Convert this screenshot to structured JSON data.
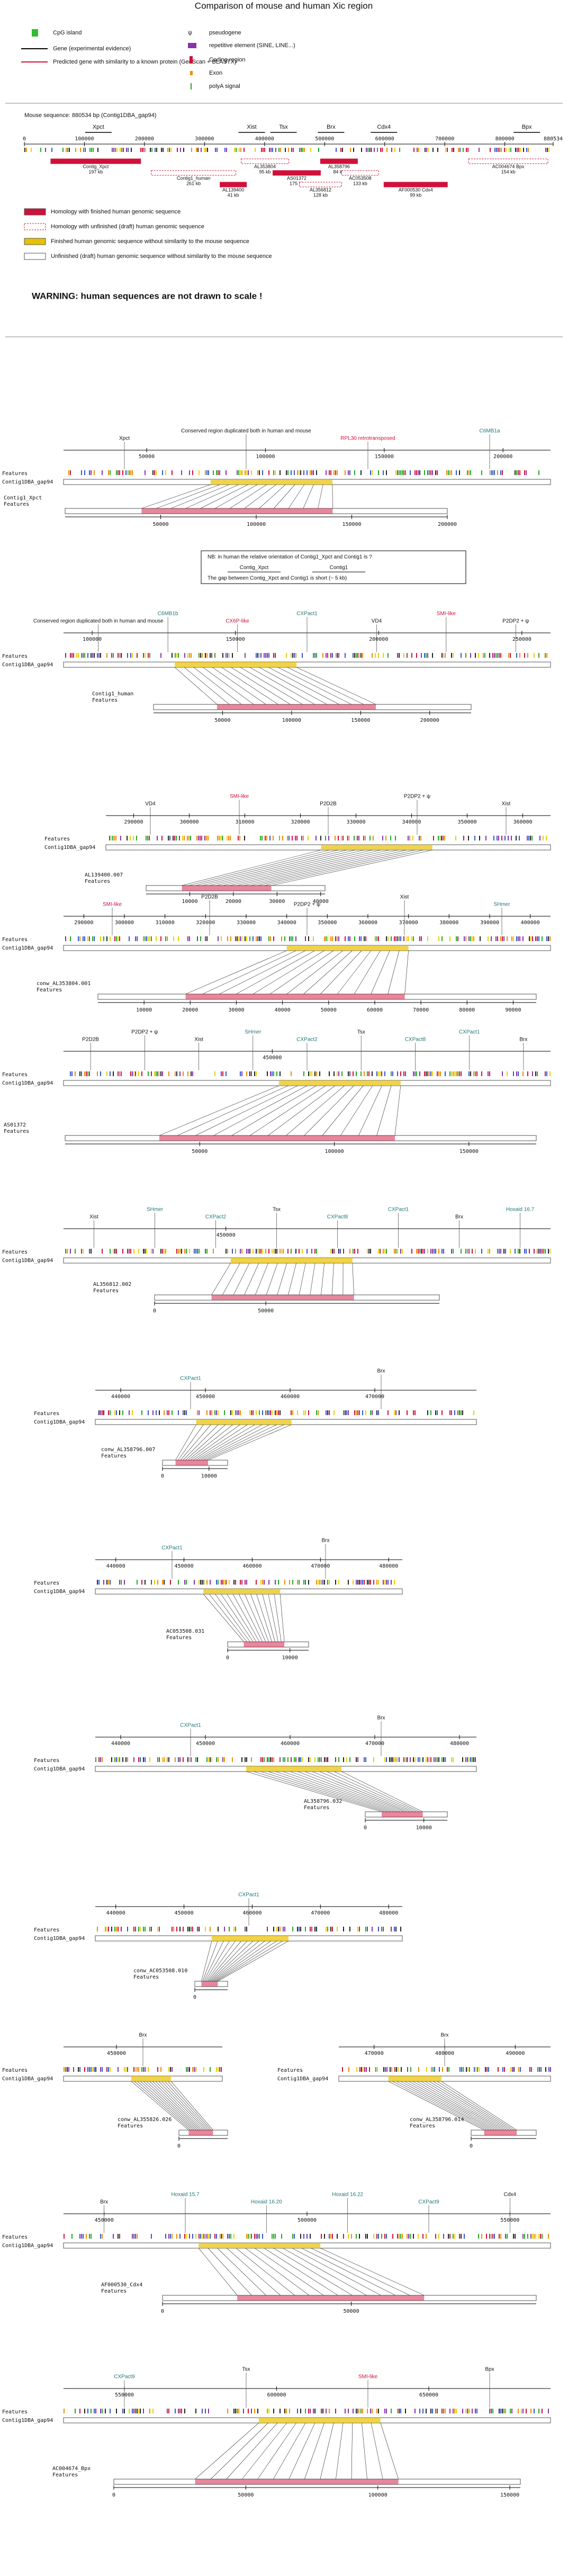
{
  "title": "Comparison of mouse and human Xic region",
  "legend": {
    "items": [
      "CpG island",
      "Gene (experimental evidence)",
      "Predicted gene with similarity to a known protein (GenScan + BLASTX)",
      "pseudogene",
      "repetitive element (SINE, LINE...)",
      "Coding region",
      "Exon",
      "polyA signal"
    ]
  },
  "mouse": {
    "title": "Mouse sequence: 880534 bp (Contig1DBA_gap94)",
    "xlim": [
      0,
      880534
    ],
    "xticks": [
      0,
      100000,
      200000,
      300000,
      400000,
      500000,
      600000,
      700000,
      800000,
      880534
    ],
    "genes": [
      "Xpct",
      "Xist",
      "Tsx",
      "Brx",
      "Cdx4",
      "Bpx"
    ],
    "human_sequences": [
      {
        "name": "Contig_Xpct",
        "size": "197 kb"
      },
      {
        "name": "Contig1_human",
        "size": "261 kb"
      },
      {
        "name": "AL139400",
        "size": "41 kb"
      },
      {
        "name": "AL353804",
        "size": "95 kb"
      },
      {
        "name": "AS01372",
        "size": "175 kb"
      },
      {
        "name": "AL356812",
        "size": "128 kb"
      },
      {
        "name": "AL358796",
        "size": "84 kb"
      },
      {
        "name": "AC053508",
        "size": "133 kb"
      },
      {
        "name": "AF000530 Cdx4",
        "size": "99 kb"
      },
      {
        "name": "AC004674 Bpx",
        "size": "154 kb"
      }
    ]
  },
  "homology_legend": [
    "Homology with finished human genomic sequence",
    "Homology with unfinished (draft) human genomic sequence",
    "Finished human genomic sequence without similarity to the mouse sequence",
    "Unfinished (draft) human genomic sequence without similarity to the mouse sequence"
  ],
  "warning": "WARNING: human sequences are not drawn to scale !",
  "note": {
    "lines": [
      "NB: in human the relative orientation of Contig1_Xpct and Contig1 is ?",
      "Contig_Xpct",
      "Contig1",
      "The gap between Contig_Xpct and Contig1 is short (~ 5 kb)"
    ]
  },
  "panels": [
    {
      "mouse_label": "Features",
      "mouse_name": "Contig1DBA_gap94",
      "human_name": "Contig1_Xpct",
      "human_label": "Features",
      "xlim": [
        15000,
        220000
      ],
      "xticks": [
        50000,
        100000,
        150000,
        200000
      ],
      "hlim": [
        0,
        200000
      ],
      "hticks": [
        50000,
        100000,
        150000,
        200000
      ],
      "annotations": [
        "Xpct",
        "Conserved region duplicated both in human and mouse",
        "RPL30 retrotransposed",
        "C6MB1a"
      ]
    },
    {
      "mouse_label": "Features",
      "mouse_name": "Contig1DBA_gap94",
      "human_name": "Contig1_human",
      "human_label": "Features",
      "xlim": [
        90000,
        260000
      ],
      "xticks": [
        100000,
        150000,
        200000,
        250000
      ],
      "hlim": [
        0,
        230000
      ],
      "hticks": [
        50000,
        100000,
        150000,
        200000
      ],
      "annotations": [
        "Conserved region duplicated both in human and mouse",
        "C6MB1b",
        "CX6P-like",
        "CXPact1",
        "VD4",
        "SMI-like",
        "P2DP2 + ψ"
      ]
    },
    {
      "mouse_label": "Features",
      "mouse_name": "Contig1DBA_gap94",
      "human_name": "AL139400.007",
      "human_label": "Features",
      "xlim": [
        285000,
        365000
      ],
      "xticks": [
        290000,
        300000,
        310000,
        320000,
        330000,
        340000,
        350000,
        360000
      ],
      "hlim": [
        0,
        41000
      ],
      "hticks": [
        10000,
        20000,
        30000,
        40000
      ],
      "annotations": [
        "VD4",
        "SMI-like",
        "P2D2B",
        "P2DP2 + ψ",
        "Xist"
      ]
    },
    {
      "mouse_label": "Features",
      "mouse_name": "Contig1DBA_gap94",
      "human_name": "conw_AL353804.001",
      "human_label": "Features",
      "xlim": [
        285000,
        405000
      ],
      "xticks": [
        290000,
        300000,
        310000,
        320000,
        330000,
        340000,
        350000,
        360000,
        370000,
        380000,
        390000,
        400000
      ],
      "hlim": [
        0,
        95000
      ],
      "hticks": [
        10000,
        20000,
        30000,
        40000,
        50000,
        60000,
        70000,
        80000,
        90000
      ],
      "annotations": [
        "SMI-like",
        "P2D2B",
        "P2DP2 + ψ",
        "Xist",
        "SHmer"
      ]
    },
    {
      "mouse_label": "Features",
      "mouse_name": "Contig1DBA_gap94",
      "human_name": "AS01372",
      "human_label": "Features",
      "xlim": [
        420000,
        490000
      ],
      "xticks": [
        450000
      ],
      "hlim": [
        0,
        175000
      ],
      "hticks": [
        50000,
        100000,
        150000
      ],
      "annotations": [
        "P2D2B",
        "P2DP2 + ψ",
        "Xist",
        "SHmer",
        "CXPact2",
        "Tsx",
        "CXPact8",
        "CXPact1",
        "Brx"
      ]
    },
    {
      "mouse_label": "Features",
      "mouse_name": "Contig1DBA_gap94",
      "human_name": "AL356812.002",
      "human_label": "Features",
      "xlim": [
        430000,
        490000
      ],
      "xticks": [
        450000
      ],
      "hlim": [
        0,
        128000
      ],
      "hticks": [
        0,
        50000
      ],
      "annotations": [
        "Xist",
        "SHmer",
        "CXPact2",
        "Tsx",
        "CXPact8",
        "CXPact1",
        "Brx",
        "Hoxaid 16.7"
      ]
    },
    {
      "mouse_label": "Features",
      "mouse_name": "Contig1DBA_gap94",
      "human_name": "conw_AL358796.007",
      "human_label": "Features",
      "xlim": [
        437000,
        482000
      ],
      "xticks": [
        440000,
        450000,
        460000,
        470000
      ],
      "hlim": [
        0,
        14000
      ],
      "hticks": [
        0,
        10000
      ],
      "annotations": [
        "CXPact1",
        "Brx"
      ]
    },
    {
      "mouse_label": "Features",
      "mouse_name": "Contig1DBA_gap94",
      "human_name": "AC053508.031",
      "human_label": "Features",
      "xlim": [
        437000,
        482000
      ],
      "xticks": [
        440000,
        450000,
        460000,
        470000,
        480000
      ],
      "hlim": [
        0,
        13000
      ],
      "hticks": [
        0,
        10000
      ],
      "annotations": [
        "CXPact1",
        "Brx"
      ]
    },
    {
      "mouse_label": "Features",
      "mouse_name": "Contig1DBA_gap94",
      "human_name": "AL358796.032",
      "human_label": "Features",
      "xlim": [
        437000,
        482000
      ],
      "xticks": [
        440000,
        450000,
        460000,
        470000,
        480000
      ],
      "hlim": [
        0,
        14000
      ],
      "hticks": [
        0,
        10000
      ],
      "annotations": [
        "CXPact1",
        "Brx"
      ]
    },
    {
      "mouse_label": "Features",
      "mouse_name": "Contig1DBA_gap94",
      "human_name": "conw_AC053508.010",
      "human_label": "Features",
      "xlim": [
        437000,
        482000
      ],
      "xticks": [
        440000,
        450000,
        460000,
        470000,
        480000
      ],
      "hlim": [
        0,
        5000
      ],
      "hticks": [
        0
      ],
      "annotations": [
        "CXPact1"
      ]
    },
    {
      "mouse_label": "Features",
      "mouse_name": "Contig1DBA_gap94",
      "human_name": "conw_AL355826.026",
      "human_label": "Features",
      "xlim": [
        440000,
        470000
      ],
      "xticks": [
        450000
      ],
      "hlim": [
        0,
        3000
      ],
      "hticks": [
        0
      ],
      "annotations": [
        "Brx"
      ]
    },
    {
      "mouse_label": "Features",
      "mouse_name": "Contig1DBA_gap94",
      "human_name": "conw_AL358796.014",
      "human_label": "Features",
      "xlim": [
        465000,
        495000
      ],
      "xticks": [
        470000,
        480000,
        490000
      ],
      "hlim": [
        0,
        3000
      ],
      "hticks": [
        0
      ],
      "annotations": [
        "Brx"
      ]
    },
    {
      "mouse_label": "Features",
      "mouse_name": "Contig1DBA_gap94",
      "human_name": "AF000530_Cdx4",
      "human_label": "Features",
      "xlim": [
        440000,
        560000
      ],
      "xticks": [
        450000,
        500000,
        550000
      ],
      "hlim": [
        0,
        99000
      ],
      "hticks": [
        0,
        50000
      ],
      "annotations": [
        "Brx",
        "Hoxaid 15.7",
        "Hoxaid 16.20",
        "Hoxaid 16.22",
        "CXPact9",
        "Cdx4"
      ]
    },
    {
      "mouse_label": "Features",
      "mouse_name": "Contig1DBA_gap94",
      "human_name": "AC004674_Bpx",
      "human_label": "Features",
      "xlim": [
        530000,
        690000
      ],
      "xticks": [
        550000,
        600000,
        650000
      ],
      "hlim": [
        0,
        154000
      ],
      "hticks": [
        0,
        50000,
        100000,
        150000
      ],
      "annotations": [
        "CXPact9",
        "Tsx",
        "SMI-like",
        "Bpx"
      ]
    }
  ]
}
